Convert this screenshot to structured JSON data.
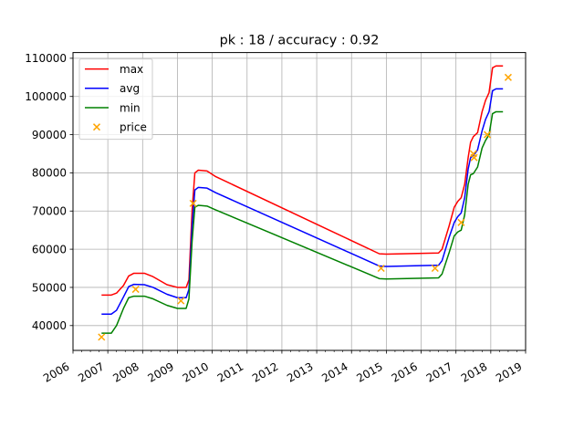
{
  "chart_data": {
    "type": "line",
    "title": "pk : 18 / accuracy : 0.92",
    "xlabel": "",
    "ylabel": "",
    "xlim": [
      2006.0,
      2019.0
    ],
    "ylim": [
      33500,
      111500
    ],
    "x_ticks": [
      2006,
      2007,
      2008,
      2009,
      2010,
      2011,
      2012,
      2013,
      2014,
      2015,
      2016,
      2017,
      2018,
      2019
    ],
    "x_tick_labels": [
      "2006",
      "2007",
      "2008",
      "2009",
      "2010",
      "2011",
      "2012",
      "2013",
      "2014",
      "2015",
      "2016",
      "2017",
      "2018",
      "2019"
    ],
    "y_ticks": [
      40000,
      50000,
      60000,
      70000,
      80000,
      90000,
      100000,
      110000
    ],
    "y_tick_labels": [
      "40000",
      "50000",
      "60000",
      "70000",
      "80000",
      "90000",
      "100000",
      "110000"
    ],
    "grid": true,
    "legend_position": "top-left",
    "series": [
      {
        "name": "max",
        "kind": "line",
        "color": "#ff0000",
        "points": [
          [
            2006.82,
            48000
          ],
          [
            2007.1,
            48000
          ],
          [
            2007.25,
            48500
          ],
          [
            2007.45,
            50500
          ],
          [
            2007.6,
            53000
          ],
          [
            2007.75,
            53700
          ],
          [
            2008.05,
            53700
          ],
          [
            2008.3,
            52800
          ],
          [
            2008.7,
            50700
          ],
          [
            2009.0,
            50000
          ],
          [
            2009.25,
            50000
          ],
          [
            2009.33,
            52000
          ],
          [
            2009.42,
            70000
          ],
          [
            2009.5,
            80000
          ],
          [
            2009.6,
            80700
          ],
          [
            2009.85,
            80500
          ],
          [
            2010.1,
            79000
          ],
          [
            2014.8,
            58800
          ],
          [
            2015.0,
            58700
          ],
          [
            2016.5,
            59000
          ],
          [
            2016.6,
            60000
          ],
          [
            2016.8,
            66000
          ],
          [
            2016.95,
            71000
          ],
          [
            2017.05,
            72500
          ],
          [
            2017.15,
            73500
          ],
          [
            2017.25,
            77000
          ],
          [
            2017.35,
            84000
          ],
          [
            2017.42,
            88000
          ],
          [
            2017.5,
            89500
          ],
          [
            2017.62,
            90500
          ],
          [
            2017.75,
            96000
          ],
          [
            2017.85,
            99000
          ],
          [
            2017.95,
            101000
          ],
          [
            2018.05,
            107500
          ],
          [
            2018.15,
            108000
          ],
          [
            2018.35,
            108000
          ]
        ]
      },
      {
        "name": "avg",
        "kind": "line",
        "color": "#0000ff",
        "points": [
          [
            2006.82,
            43000
          ],
          [
            2007.1,
            43000
          ],
          [
            2007.25,
            44000
          ],
          [
            2007.45,
            47500
          ],
          [
            2007.6,
            50200
          ],
          [
            2007.75,
            50800
          ],
          [
            2008.05,
            50700
          ],
          [
            2008.3,
            50000
          ],
          [
            2008.7,
            48200
          ],
          [
            2009.0,
            47300
          ],
          [
            2009.25,
            47300
          ],
          [
            2009.33,
            49500
          ],
          [
            2009.42,
            66000
          ],
          [
            2009.5,
            75500
          ],
          [
            2009.6,
            76200
          ],
          [
            2009.85,
            76000
          ],
          [
            2010.1,
            74800
          ],
          [
            2014.8,
            55600
          ],
          [
            2015.0,
            55500
          ],
          [
            2016.5,
            55800
          ],
          [
            2016.6,
            57000
          ],
          [
            2016.8,
            63000
          ],
          [
            2016.95,
            67000
          ],
          [
            2017.05,
            68500
          ],
          [
            2017.15,
            69500
          ],
          [
            2017.25,
            73500
          ],
          [
            2017.35,
            81000
          ],
          [
            2017.42,
            84000
          ],
          [
            2017.5,
            84500
          ],
          [
            2017.62,
            86000
          ],
          [
            2017.75,
            91000
          ],
          [
            2017.85,
            94000
          ],
          [
            2017.95,
            96000
          ],
          [
            2018.05,
            101500
          ],
          [
            2018.15,
            102000
          ],
          [
            2018.35,
            102000
          ]
        ]
      },
      {
        "name": "min",
        "kind": "line",
        "color": "#008000",
        "points": [
          [
            2006.82,
            38000
          ],
          [
            2007.1,
            38000
          ],
          [
            2007.25,
            40000
          ],
          [
            2007.45,
            44500
          ],
          [
            2007.6,
            47300
          ],
          [
            2007.75,
            47700
          ],
          [
            2008.05,
            47700
          ],
          [
            2008.3,
            47000
          ],
          [
            2008.7,
            45300
          ],
          [
            2009.0,
            44500
          ],
          [
            2009.25,
            44500
          ],
          [
            2009.33,
            47000
          ],
          [
            2009.42,
            62000
          ],
          [
            2009.5,
            71000
          ],
          [
            2009.6,
            71500
          ],
          [
            2009.85,
            71300
          ],
          [
            2010.1,
            70300
          ],
          [
            2014.8,
            52300
          ],
          [
            2015.0,
            52200
          ],
          [
            2016.5,
            52500
          ],
          [
            2016.6,
            53500
          ],
          [
            2016.8,
            59000
          ],
          [
            2016.95,
            63500
          ],
          [
            2017.05,
            64500
          ],
          [
            2017.15,
            65000
          ],
          [
            2017.25,
            69000
          ],
          [
            2017.35,
            77000
          ],
          [
            2017.42,
            79500
          ],
          [
            2017.5,
            79800
          ],
          [
            2017.62,
            81500
          ],
          [
            2017.75,
            86500
          ],
          [
            2017.85,
            88500
          ],
          [
            2017.95,
            90000
          ],
          [
            2018.05,
            95500
          ],
          [
            2018.15,
            96000
          ],
          [
            2018.35,
            96000
          ]
        ]
      },
      {
        "name": "price",
        "kind": "scatter",
        "marker": "x",
        "color": "#ffa500",
        "points": [
          [
            2006.82,
            37000
          ],
          [
            2007.8,
            49500
          ],
          [
            2009.1,
            46500
          ],
          [
            2009.45,
            72000
          ],
          [
            2014.85,
            55000
          ],
          [
            2016.4,
            55000
          ],
          [
            2017.15,
            67000
          ],
          [
            2017.5,
            85000
          ],
          [
            2017.52,
            84000
          ],
          [
            2017.9,
            90000
          ],
          [
            2018.5,
            105000
          ]
        ]
      }
    ]
  }
}
